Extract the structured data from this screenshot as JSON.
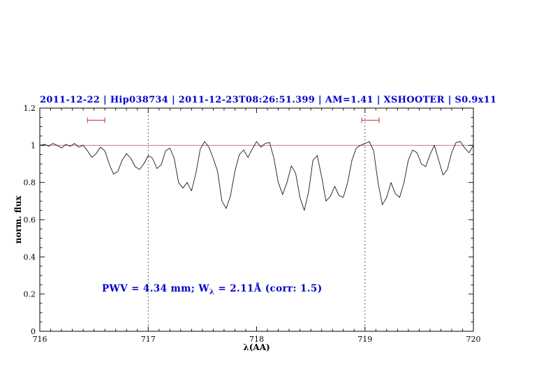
{
  "title": "2011-12-22 | Hip038734 | 2011-12-23T08:26:51.399 | AM=1.41 | XSHOOTER | S0.9x11",
  "annotation": {
    "pre": "PWV = 4.34 mm; W",
    "sub": "λ",
    "post": " = 2.11Å (corr: 1.5)"
  },
  "colors": {
    "title": "#0000cd",
    "annotation": "#0000cd",
    "spectrum": "#1a1a1a",
    "continuum": "#d06060",
    "marker": "#c83232",
    "axis": "#000000"
  },
  "chart_data": {
    "type": "line",
    "title": "2011-12-22 | Hip038734 | 2011-12-23T08:26:51.399 | AM=1.41 | XSHOOTER | S0.9x11",
    "xlabel": "λ(AA)",
    "ylabel": "norm. flux",
    "xlim": [
      716,
      720
    ],
    "ylim": [
      0,
      1.2
    ],
    "xticks": [
      716,
      717,
      718,
      719,
      720
    ],
    "xtick_labels": [
      "716",
      "717",
      "718",
      "719",
      "720"
    ],
    "x_minor_step": 0.1,
    "yticks": [
      0,
      0.2,
      0.4,
      0.6,
      0.8,
      1,
      1.2
    ],
    "ytick_labels": [
      "0",
      "0.2",
      "0.4",
      "0.6",
      "0.8",
      "1",
      "1.2"
    ],
    "y_minor_step": 0.05,
    "grid": false,
    "legend": "none",
    "reference_lines": {
      "continuum_y": 1.0,
      "vertical_dotted": [
        717,
        719
      ]
    },
    "range_markers": [
      {
        "x1": 716.44,
        "x2": 716.6,
        "y": 1.135
      },
      {
        "x1": 718.97,
        "x2": 719.13,
        "y": 1.135
      }
    ],
    "series": [
      {
        "name": "telluric-spectrum",
        "points": [
          [
            716.0,
            1.0
          ],
          [
            716.05,
            1.005
          ],
          [
            716.08,
            0.995
          ],
          [
            716.12,
            1.01
          ],
          [
            716.16,
            1.0
          ],
          [
            716.2,
            0.985
          ],
          [
            716.24,
            1.005
          ],
          [
            716.28,
            0.995
          ],
          [
            716.32,
            1.01
          ],
          [
            716.36,
            0.99
          ],
          [
            716.4,
            1.0
          ],
          [
            716.44,
            0.97
          ],
          [
            716.48,
            0.935
          ],
          [
            716.52,
            0.955
          ],
          [
            716.56,
            0.99
          ],
          [
            716.6,
            0.97
          ],
          [
            716.64,
            0.9
          ],
          [
            716.68,
            0.845
          ],
          [
            716.72,
            0.86
          ],
          [
            716.76,
            0.92
          ],
          [
            716.8,
            0.955
          ],
          [
            716.84,
            0.93
          ],
          [
            716.88,
            0.885
          ],
          [
            716.92,
            0.87
          ],
          [
            716.96,
            0.9
          ],
          [
            717.0,
            0.945
          ],
          [
            717.04,
            0.93
          ],
          [
            717.08,
            0.875
          ],
          [
            717.12,
            0.895
          ],
          [
            717.16,
            0.97
          ],
          [
            717.2,
            0.985
          ],
          [
            717.24,
            0.93
          ],
          [
            717.28,
            0.8
          ],
          [
            717.32,
            0.77
          ],
          [
            717.36,
            0.8
          ],
          [
            717.4,
            0.755
          ],
          [
            717.44,
            0.85
          ],
          [
            717.48,
            0.98
          ],
          [
            717.52,
            1.02
          ],
          [
            717.56,
            0.99
          ],
          [
            717.6,
            0.93
          ],
          [
            717.64,
            0.86
          ],
          [
            717.68,
            0.7
          ],
          [
            717.72,
            0.66
          ],
          [
            717.76,
            0.73
          ],
          [
            717.8,
            0.86
          ],
          [
            717.84,
            0.95
          ],
          [
            717.88,
            0.975
          ],
          [
            717.92,
            0.935
          ],
          [
            717.96,
            0.98
          ],
          [
            718.0,
            1.02
          ],
          [
            718.04,
            0.99
          ],
          [
            718.08,
            1.01
          ],
          [
            718.12,
            1.015
          ],
          [
            718.16,
            0.93
          ],
          [
            718.2,
            0.8
          ],
          [
            718.24,
            0.735
          ],
          [
            718.28,
            0.8
          ],
          [
            718.32,
            0.89
          ],
          [
            718.36,
            0.85
          ],
          [
            718.4,
            0.72
          ],
          [
            718.44,
            0.65
          ],
          [
            718.48,
            0.75
          ],
          [
            718.52,
            0.92
          ],
          [
            718.56,
            0.945
          ],
          [
            718.6,
            0.83
          ],
          [
            718.64,
            0.7
          ],
          [
            718.68,
            0.725
          ],
          [
            718.72,
            0.78
          ],
          [
            718.76,
            0.73
          ],
          [
            718.8,
            0.72
          ],
          [
            718.84,
            0.8
          ],
          [
            718.88,
            0.92
          ],
          [
            718.92,
            0.985
          ],
          [
            718.96,
            1.0
          ],
          [
            719.0,
            1.01
          ],
          [
            719.04,
            1.02
          ],
          [
            719.08,
            0.97
          ],
          [
            719.12,
            0.8
          ],
          [
            719.16,
            0.68
          ],
          [
            719.2,
            0.72
          ],
          [
            719.24,
            0.8
          ],
          [
            719.28,
            0.74
          ],
          [
            719.32,
            0.72
          ],
          [
            719.36,
            0.8
          ],
          [
            719.4,
            0.92
          ],
          [
            719.44,
            0.975
          ],
          [
            719.48,
            0.96
          ],
          [
            719.52,
            0.9
          ],
          [
            719.56,
            0.885
          ],
          [
            719.6,
            0.95
          ],
          [
            719.64,
            1.0
          ],
          [
            719.68,
            0.92
          ],
          [
            719.72,
            0.84
          ],
          [
            719.76,
            0.87
          ],
          [
            719.8,
            0.96
          ],
          [
            719.84,
            1.015
          ],
          [
            719.88,
            1.02
          ],
          [
            719.92,
            0.985
          ],
          [
            719.96,
            0.96
          ],
          [
            720.0,
            1.0
          ]
        ]
      }
    ]
  }
}
